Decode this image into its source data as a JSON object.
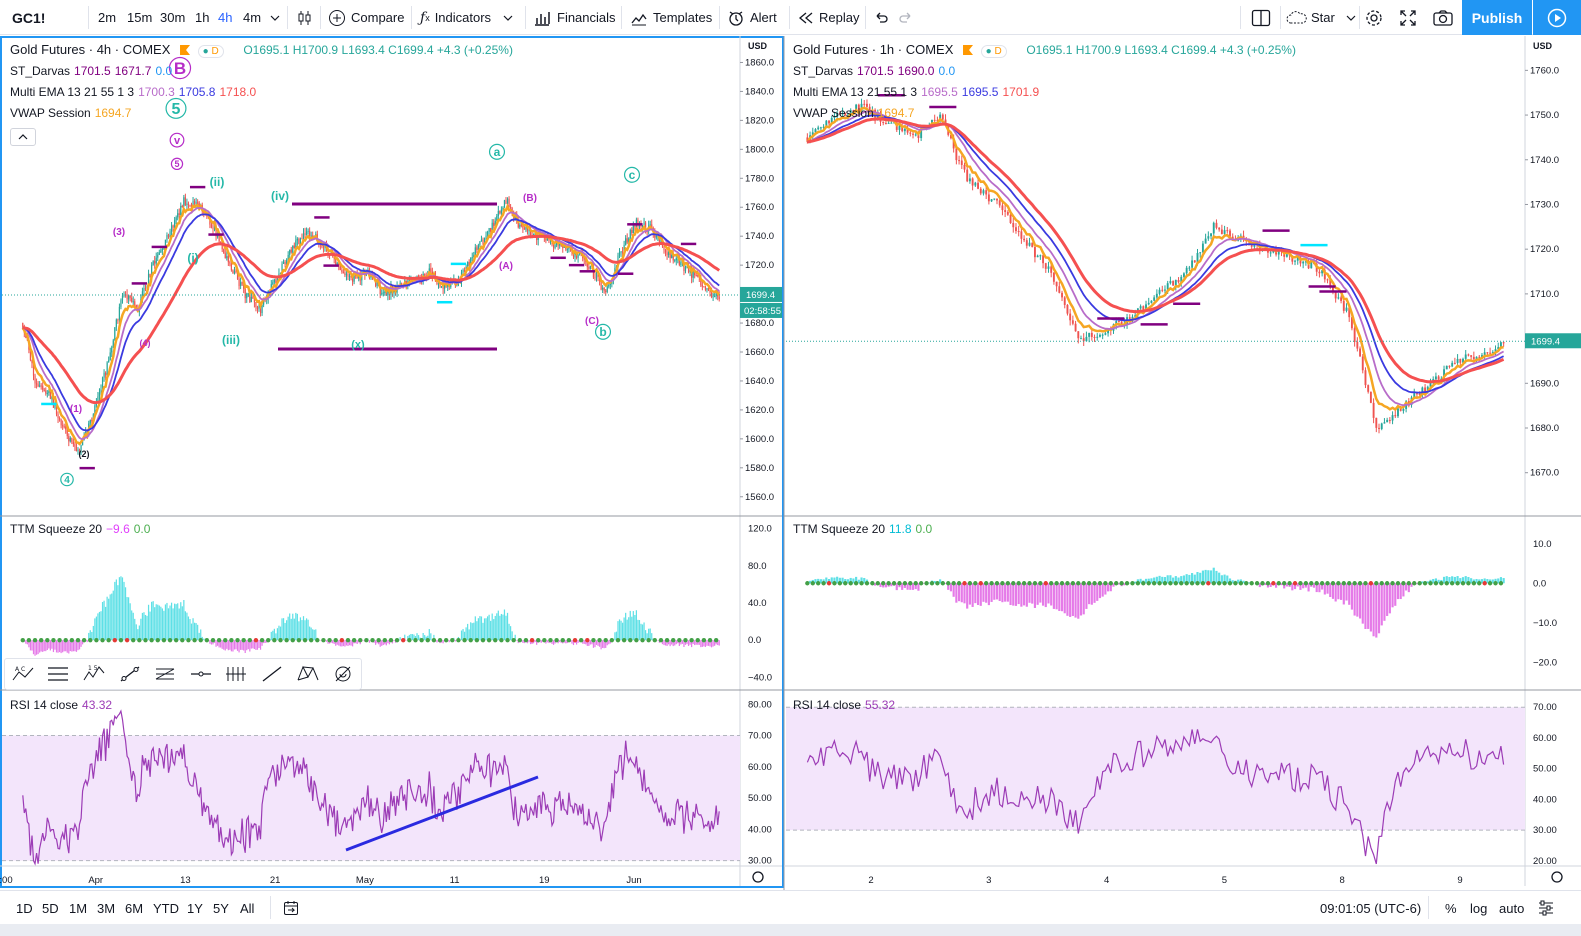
{
  "toolbar": {
    "symbol": "GC1!",
    "intervals": [
      "2m",
      "15m",
      "30m",
      "1h",
      "4h",
      "4m"
    ],
    "active_interval": "4h",
    "compare": "Compare",
    "indicators": "Indicators",
    "financials": "Financials",
    "templates": "Templates",
    "alert": "Alert",
    "replay": "Replay",
    "layout_name": "Star",
    "publish": "Publish"
  },
  "left_pane": {
    "title": "Gold Futures · 4h · COMEX",
    "badge": "D",
    "ohlc": {
      "o": "O1695.1",
      "h": "H1700.9",
      "l": "L1693.4",
      "c": "C1699.4",
      "chg": "+4.3 (+0.25%)"
    },
    "darvas": {
      "name": "ST_Darvas",
      "v1": "1701.5",
      "v2": "1671.7",
      "v3": "0.0"
    },
    "ema": {
      "name": "Multi EMA 13 21 55 1 3",
      "v1": "1700.3",
      "v2": "1705.8",
      "v3": "1718.0"
    },
    "vwap": {
      "name": "VWAP Session",
      "v": "1694.7"
    },
    "currency": "USD",
    "price_ticks": [
      "1860.0",
      "1840.0",
      "1820.0",
      "1800.0",
      "1780.0",
      "1760.0",
      "1740.0",
      "1720.0",
      "1700.0",
      "1680.0",
      "1660.0",
      "1640.0",
      "1620.0",
      "1600.0",
      "1580.0",
      "1560.0"
    ],
    "last_price": "1699.4",
    "countdown": "02:58:55",
    "ttm": {
      "name": "TTM Squeeze 20",
      "v1": "−9.6",
      "v2": "0.0",
      "ticks": [
        "120.0",
        "80.0",
        "40.0",
        "0.0",
        "−40.0"
      ]
    },
    "rsi": {
      "name": "RSI 14 close",
      "v": "43.32",
      "ticks": [
        "80.00",
        "70.00",
        "60.00",
        "50.00",
        "40.00",
        "30.00"
      ]
    },
    "time_ticks": [
      ":00",
      "Apr",
      "13",
      "21",
      "May",
      "11",
      "19",
      "Jun"
    ],
    "wave_labels": [
      "B",
      "5",
      "v",
      "5",
      "(ii)",
      "(iv)",
      "(3)",
      "(i)",
      "(iii)",
      "(4)",
      "(x)",
      "a",
      "(B)",
      "(A)",
      "c",
      "(C)",
      "b",
      "(1)",
      "(2)",
      "4"
    ]
  },
  "right_pane": {
    "title": "Gold Futures · 1h · COMEX",
    "badge": "D",
    "ohlc": {
      "o": "O1695.1",
      "h": "H1700.9",
      "l": "L1693.4",
      "c": "C1699.4",
      "chg": "+4.3 (+0.25%)"
    },
    "darvas": {
      "name": "ST_Darvas",
      "v1": "1701.5",
      "v2": "1690.0",
      "v3": "0.0"
    },
    "ema": {
      "name": "Multi EMA 13 21 55 1 3",
      "v1": "1695.5",
      "v2": "1695.5",
      "v3": "1701.9"
    },
    "vwap": {
      "name": "VWAP Session",
      "v": "1694.7"
    },
    "currency": "USD",
    "price_ticks": [
      "1760.0",
      "1750.0",
      "1740.0",
      "1730.0",
      "1720.0",
      "1710.0",
      "1700.0",
      "1690.0",
      "1680.0",
      "1670.0"
    ],
    "last_price": "1699.4",
    "ttm": {
      "name": "TTM Squeeze 20",
      "v1": "11.8",
      "v2": "0.0",
      "ticks": [
        "10.0",
        "0.0",
        "−10.0",
        "−20.0"
      ]
    },
    "rsi": {
      "name": "RSI 14 close",
      "v": "55.32",
      "ticks": [
        "70.00",
        "60.00",
        "50.00",
        "40.00",
        "30.00",
        "20.00"
      ]
    },
    "time_ticks": [
      "2",
      "3",
      "4",
      "5",
      "8",
      "9"
    ]
  },
  "bottom": {
    "ranges": [
      "1D",
      "5D",
      "1M",
      "3M",
      "6M",
      "YTD",
      "1Y",
      "5Y",
      "All"
    ],
    "clock": "09:01:05 (UTC-6)",
    "percent": "%",
    "log": "log",
    "auto": "auto"
  },
  "colors": {
    "up": "#26a69a",
    "down": "#ef5350",
    "ema13": "#b86cc9",
    "ema21": "#3a3ae0",
    "ema55": "#f55050",
    "vwap": "#f5a623",
    "darvas": "#800080",
    "rsi": "#9c3cb6",
    "rsi_band": "#f3e5fb",
    "ttm_pos": "#5ee0e6",
    "ttm_neg": "#e57ae8",
    "wave": "#24b8a8",
    "wave2": "#b62cc8",
    "accent": "#2196f3"
  },
  "chart_data": [
    {
      "type": "candlestick",
      "title": "Gold Futures · 4h · COMEX",
      "x_ticks": [
        ":00",
        "Apr",
        "13",
        "21",
        "May",
        "11",
        "19",
        "Jun"
      ],
      "ylim": [
        1555,
        1870
      ],
      "anchors": [
        [
          0,
          1680
        ],
        [
          8,
          1640
        ],
        [
          18,
          1630
        ],
        [
          25,
          1610
        ],
        [
          35,
          1590
        ],
        [
          42,
          1605
        ],
        [
          55,
          1650
        ],
        [
          65,
          1700
        ],
        [
          75,
          1690
        ],
        [
          85,
          1720
        ],
        [
          95,
          1740
        ],
        [
          105,
          1765
        ],
        [
          115,
          1760
        ],
        [
          125,
          1745
        ],
        [
          135,
          1720
        ],
        [
          145,
          1700
        ],
        [
          155,
          1690
        ],
        [
          165,
          1710
        ],
        [
          175,
          1730
        ],
        [
          185,
          1745
        ],
        [
          195,
          1735
        ],
        [
          205,
          1720
        ],
        [
          215,
          1710
        ],
        [
          225,
          1715
        ],
        [
          235,
          1700
        ],
        [
          245,
          1705
        ],
        [
          255,
          1710
        ],
        [
          265,
          1715
        ],
        [
          275,
          1705
        ],
        [
          285,
          1710
        ],
        [
          295,
          1730
        ],
        [
          305,
          1745
        ],
        [
          315,
          1765
        ],
        [
          325,
          1745
        ],
        [
          335,
          1740
        ],
        [
          345,
          1735
        ],
        [
          355,
          1730
        ],
        [
          365,
          1725
        ],
        [
          375,
          1710
        ],
        [
          380,
          1700
        ],
        [
          390,
          1730
        ],
        [
          400,
          1750
        ],
        [
          410,
          1745
        ],
        [
          420,
          1730
        ],
        [
          430,
          1720
        ],
        [
          440,
          1710
        ],
        [
          450,
          1700
        ],
        [
          455,
          1699
        ]
      ],
      "n_candles": 455,
      "last": 1699.4
    },
    {
      "type": "candlestick",
      "title": "Gold Futures · 1h · COMEX",
      "x_ticks": [
        "2",
        "3",
        "4",
        "5",
        "8",
        "9"
      ],
      "ylim": [
        1663,
        1765
      ],
      "anchors": [
        [
          0,
          1745
        ],
        [
          10,
          1750
        ],
        [
          20,
          1752
        ],
        [
          30,
          1748
        ],
        [
          40,
          1745
        ],
        [
          50,
          1750
        ],
        [
          55,
          1740
        ],
        [
          60,
          1735
        ],
        [
          70,
          1730
        ],
        [
          80,
          1722
        ],
        [
          90,
          1715
        ],
        [
          100,
          1700
        ],
        [
          110,
          1702
        ],
        [
          120,
          1705
        ],
        [
          130,
          1710
        ],
        [
          140,
          1715
        ],
        [
          150,
          1725
        ],
        [
          160,
          1722
        ],
        [
          170,
          1720
        ],
        [
          180,
          1718
        ],
        [
          190,
          1715
        ],
        [
          200,
          1705
        ],
        [
          210,
          1680
        ],
        [
          220,
          1685
        ],
        [
          230,
          1690
        ],
        [
          240,
          1695
        ],
        [
          250,
          1697
        ],
        [
          258,
          1699
        ]
      ],
      "n_candles": 258,
      "last": 1699.4
    }
  ]
}
